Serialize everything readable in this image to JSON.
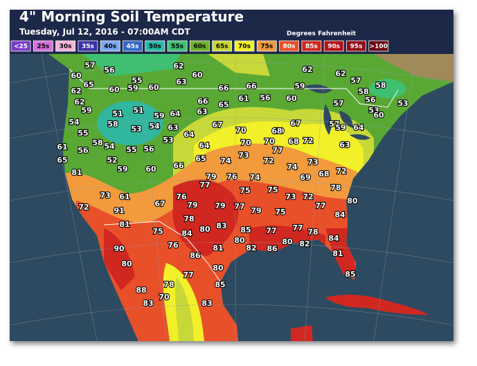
{
  "header": {
    "title": "4\" Morning Soil Temperature",
    "subtitle": "Tuesday, Jul 12, 2016 - 07:00AM CDT",
    "units": "Degrees Fahrenheit"
  },
  "legend": [
    {
      "label": "<25",
      "color": "#7a3cc8"
    },
    {
      "label": "25s",
      "color": "#d86ee0"
    },
    {
      "label": "30s",
      "color": "#f4b4d8"
    },
    {
      "label": "35s",
      "color": "#3a2fa8"
    },
    {
      "label": "40s",
      "color": "#7aa8f0"
    },
    {
      "label": "45s",
      "color": "#2f66c8"
    },
    {
      "label": "50s",
      "color": "#2cb8a8"
    },
    {
      "label": "55s",
      "color": "#3ec070"
    },
    {
      "label": "60s",
      "color": "#6cb02c"
    },
    {
      "label": "65s",
      "color": "#c8d838"
    },
    {
      "label": "70s",
      "color": "#f2f028"
    },
    {
      "label": "75s",
      "color": "#f29a3c"
    },
    {
      "label": "80s",
      "color": "#e8502a"
    },
    {
      "label": "85s",
      "color": "#d02820"
    },
    {
      "label": "90s",
      "color": "#b01418"
    },
    {
      "label": "95s",
      "color": "#900c18"
    },
    {
      "label": ">100",
      "color": "#6a0814"
    }
  ],
  "stations": [
    57,
    56,
    55,
    59,
    62,
    60,
    63,
    62,
    62,
    57,
    58,
    53,
    60,
    62,
    65,
    60,
    60,
    66,
    66,
    59,
    61,
    56,
    60,
    57,
    58,
    56,
    53,
    60,
    62,
    59,
    51,
    51,
    59,
    64,
    66,
    65,
    63,
    54,
    55,
    58,
    53,
    54,
    63,
    67,
    59,
    67,
    57,
    59,
    64,
    61,
    56,
    58,
    54,
    55,
    56,
    53,
    64,
    64,
    70,
    70,
    68,
    70,
    77,
    68,
    72,
    63,
    65,
    81,
    52,
    59,
    60,
    66,
    65,
    74,
    73,
    72,
    74,
    73,
    68,
    72,
    69,
    77,
    79,
    76,
    74,
    75,
    75,
    78,
    73,
    72,
    77,
    80,
    73,
    72,
    61,
    91,
    67,
    76,
    79,
    78,
    79,
    77,
    79,
    75,
    84,
    81,
    75,
    80,
    84,
    83,
    85,
    77,
    77,
    78,
    80,
    82,
    86,
    80,
    82,
    84,
    90,
    76,
    81,
    86,
    81,
    80,
    77,
    80,
    78,
    85,
    85,
    88,
    70,
    83,
    83
  ]
}
